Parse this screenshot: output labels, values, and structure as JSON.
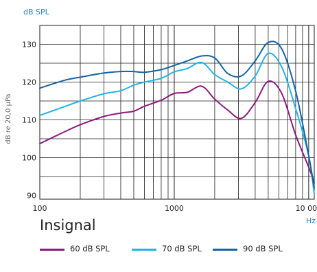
{
  "title": "Insignal",
  "y_unit_top": "dB SPL",
  "x_unit": "Hz",
  "ylabel": "dB re 20,0 µPa",
  "chart_data": {
    "type": "line",
    "title": "",
    "xlabel": "Hz",
    "ylabel": "dB re 20,0 µPa",
    "x_scale": "log",
    "xlim": [
      100,
      11000
    ],
    "ylim": [
      89,
      135
    ],
    "x_ticks": [
      100,
      1000,
      10000
    ],
    "x_tick_labels": [
      "100",
      "1000",
      "10 000"
    ],
    "y_ticks": [
      90,
      100,
      110,
      120,
      130
    ],
    "y_tick_labels": [
      "90",
      "100",
      "110",
      "120",
      "130"
    ],
    "grid": true,
    "legend_position": "bottom",
    "series": [
      {
        "name": "60 dB SPL",
        "color": "#8b1a7f",
        "points": [
          [
            100,
            103.7
          ],
          [
            150,
            106.7
          ],
          [
            200,
            108.7
          ],
          [
            300,
            110.9
          ],
          [
            400,
            111.8
          ],
          [
            500,
            112.3
          ],
          [
            600,
            113.6
          ],
          [
            800,
            115.2
          ],
          [
            1000,
            117.0
          ],
          [
            1250,
            117.3
          ],
          [
            1600,
            118.9
          ],
          [
            2000,
            115.5
          ],
          [
            2500,
            112.6
          ],
          [
            3150,
            110.4
          ],
          [
            4000,
            114.6
          ],
          [
            5000,
            120.2
          ],
          [
            6300,
            117.0
          ],
          [
            8000,
            106.0
          ],
          [
            10000,
            97.5
          ],
          [
            11000,
            93.5
          ]
        ]
      },
      {
        "name": "70 dB SPL",
        "color": "#23b3e3",
        "points": [
          [
            100,
            111.2
          ],
          [
            150,
            113.4
          ],
          [
            200,
            115.0
          ],
          [
            300,
            116.9
          ],
          [
            400,
            117.7
          ],
          [
            500,
            119.2
          ],
          [
            600,
            120.0
          ],
          [
            800,
            121.0
          ],
          [
            1000,
            122.7
          ],
          [
            1250,
            123.6
          ],
          [
            1600,
            125.2
          ],
          [
            2000,
            122.0
          ],
          [
            2500,
            120.0
          ],
          [
            3150,
            118.2
          ],
          [
            4000,
            121.6
          ],
          [
            5000,
            127.6
          ],
          [
            6300,
            124.0
          ],
          [
            8000,
            113.0
          ],
          [
            10000,
            100.5
          ],
          [
            11000,
            90.3
          ]
        ]
      },
      {
        "name": "90 dB SPL",
        "color": "#1363a5",
        "points": [
          [
            100,
            118.4
          ],
          [
            150,
            120.4
          ],
          [
            200,
            121.3
          ],
          [
            300,
            122.4
          ],
          [
            400,
            122.8
          ],
          [
            500,
            122.8
          ],
          [
            600,
            122.6
          ],
          [
            800,
            123.3
          ],
          [
            1000,
            124.4
          ],
          [
            1250,
            125.6
          ],
          [
            1600,
            126.9
          ],
          [
            2000,
            126.4
          ],
          [
            2500,
            122.3
          ],
          [
            3150,
            121.6
          ],
          [
            4000,
            125.6
          ],
          [
            5000,
            130.5
          ],
          [
            6300,
            128.8
          ],
          [
            8000,
            117.6
          ],
          [
            10000,
            100.5
          ],
          [
            11000,
            92.0
          ]
        ]
      }
    ]
  }
}
